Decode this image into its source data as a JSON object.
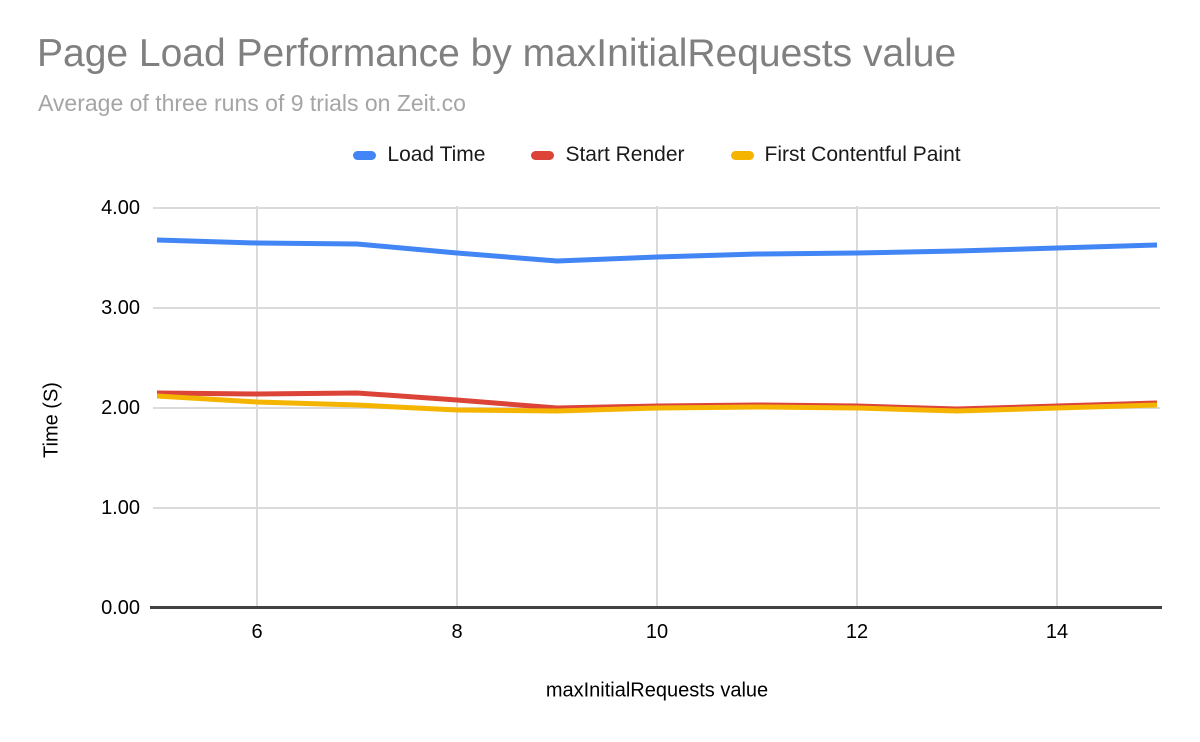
{
  "header": {
    "title": "Page Load Performance by maxInitialRequests value",
    "subtitle": "Average of three runs of 9 trials on Zeit.co"
  },
  "legend": {
    "items": [
      {
        "label": "Load Time",
        "color": "#4285F4"
      },
      {
        "label": "Start Render",
        "color": "#DB4437"
      },
      {
        "label": "First Contentful Paint",
        "color": "#F4B400"
      }
    ]
  },
  "chart_data": {
    "type": "line",
    "title": "Page Load Performance by maxInitialRequests value",
    "subtitle": "Average of three runs of 9 trials on Zeit.co",
    "xlabel": "maxInitialRequests value",
    "ylabel": "Time (S)",
    "x": [
      5,
      6,
      7,
      8,
      9,
      10,
      11,
      12,
      13,
      14,
      15
    ],
    "series": [
      {
        "name": "Load Time",
        "color": "#4285F4",
        "values": [
          3.68,
          3.65,
          3.64,
          3.55,
          3.47,
          3.51,
          3.54,
          3.55,
          3.57,
          3.6,
          3.63
        ]
      },
      {
        "name": "Start Render",
        "color": "#DB4437",
        "values": [
          2.15,
          2.14,
          2.15,
          2.08,
          2.0,
          2.02,
          2.03,
          2.02,
          1.99,
          2.02,
          2.05
        ]
      },
      {
        "name": "First Contentful Paint",
        "color": "#F4B400",
        "values": [
          2.12,
          2.06,
          2.03,
          1.98,
          1.97,
          2.0,
          2.01,
          2.0,
          1.97,
          2.0,
          2.03
        ]
      }
    ],
    "xlim": [
      5,
      15
    ],
    "ylim": [
      0,
      4
    ],
    "xtick_values": [
      6,
      8,
      10,
      12,
      14
    ],
    "xtick_labels": [
      "6",
      "8",
      "10",
      "12",
      "14"
    ],
    "ytick_values": [
      0,
      1,
      2,
      3,
      4
    ],
    "ytick_labels": [
      "0.00",
      "1.00",
      "2.00",
      "3.00",
      "4.00"
    ],
    "grid": true,
    "legend_position": "top",
    "gridline_color": "#dadada",
    "axis_line_color": "#424242"
  }
}
